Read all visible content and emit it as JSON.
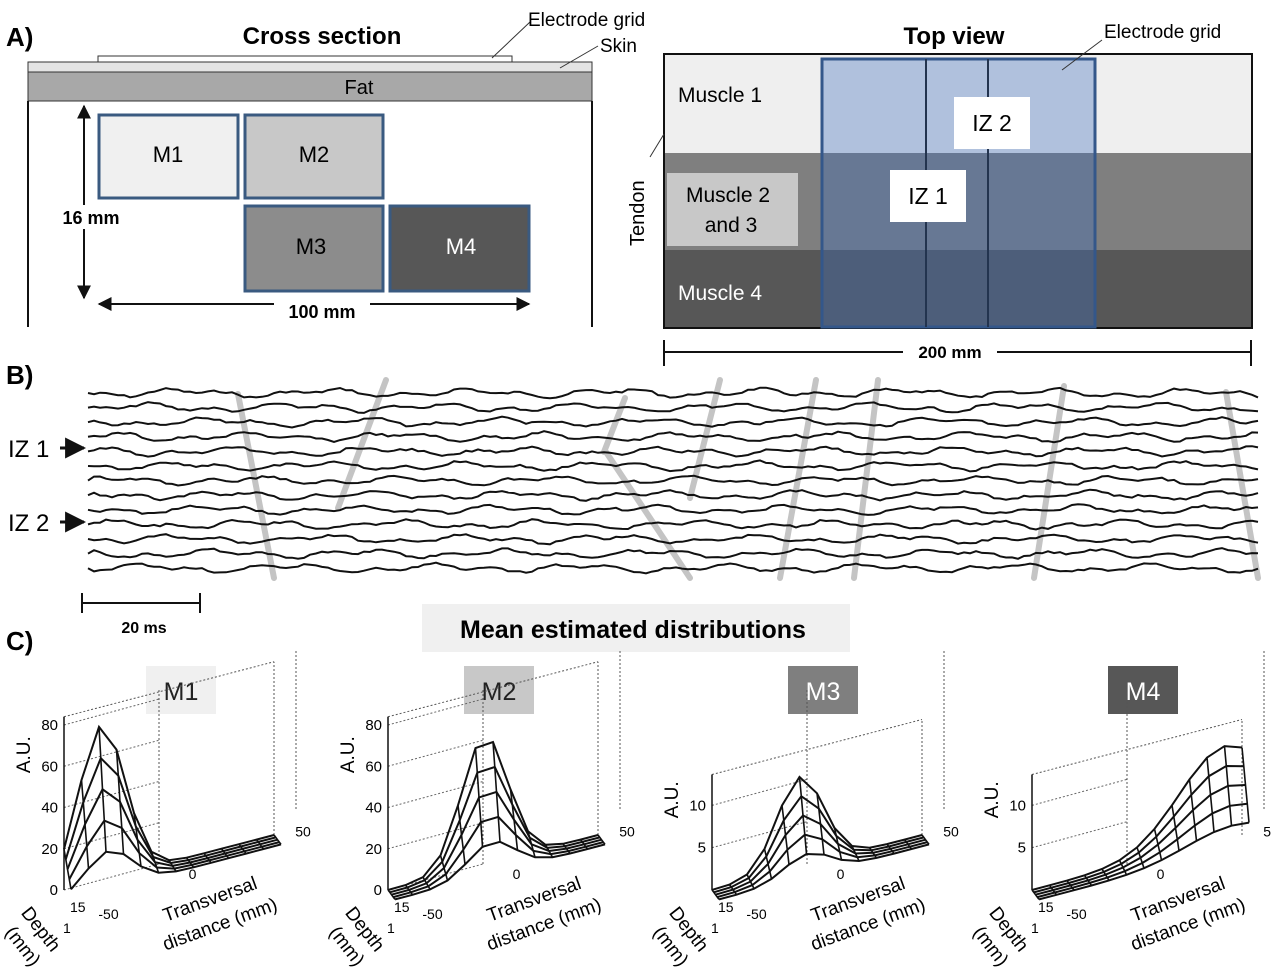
{
  "panel_labels": {
    "a": "A)",
    "b": "B)",
    "c": "C)"
  },
  "cross_section": {
    "title": "Cross section",
    "electrode_label": "Electrode grid",
    "skin_label": "Skin",
    "fat_label": "Fat",
    "depth_label": "16 mm",
    "width_label": "100 mm",
    "muscles": [
      {
        "id": "M1",
        "label": "M1",
        "fill": "#f0f0f0"
      },
      {
        "id": "M2",
        "label": "M2",
        "fill": "#c8c8c8"
      },
      {
        "id": "M3",
        "label": "M3",
        "fill": "#8c8c8c"
      },
      {
        "id": "M4",
        "label": "M4",
        "fill": "#575757"
      }
    ]
  },
  "top_view": {
    "title": "Top view",
    "electrode_label": "Electrode grid",
    "tendon_label": "Tendon",
    "muscle1_label": "Muscle 1",
    "muscle23_line1": "Muscle 2",
    "muscle23_line2": "and 3",
    "muscle4_label": "Muscle 4",
    "iz1_label": "IZ 1",
    "iz2_label": "IZ 2",
    "scale_label": "200 mm"
  },
  "signals": {
    "iz1_label": "IZ 1",
    "iz2_label": "IZ 2",
    "scale_label": "20 ms",
    "channel_count": 13
  },
  "distributions": {
    "title": "Mean estimated distributions",
    "ylabel": "A.U.",
    "xlabel_line1": "Transversal",
    "xlabel_line2": "distance (mm)",
    "depth_line1": "Depth",
    "depth_line2": "(mm)",
    "x_ticks": [
      "-50",
      "0",
      "50"
    ],
    "depth_ticks": [
      "1",
      "15"
    ],
    "plots": [
      {
        "id": "M1",
        "label": "M1",
        "badge_color": "#f0f0f0",
        "label_color": "#222222",
        "y_ticks": [
          "0",
          "20",
          "40",
          "60",
          "80"
        ],
        "peak": 0.94,
        "center": 0.18
      },
      {
        "id": "M2",
        "label": "M2",
        "badge_color": "#c8c8c8",
        "label_color": "#222222",
        "y_ticks": [
          "0",
          "20",
          "40",
          "60",
          "80"
        ],
        "peak": 0.78,
        "center": 0.46
      },
      {
        "id": "M3",
        "label": "M3",
        "badge_color": "#7f7f7f",
        "label_color": "#ffffff",
        "y_ticks": [
          "5",
          "10"
        ],
        "peak": 0.82,
        "center": 0.42
      },
      {
        "id": "M4",
        "label": "M4",
        "badge_color": "#575757",
        "label_color": "#ffffff",
        "y_ticks": [
          "5",
          "10"
        ],
        "peak": 0.85,
        "center": 0.92
      }
    ]
  }
}
